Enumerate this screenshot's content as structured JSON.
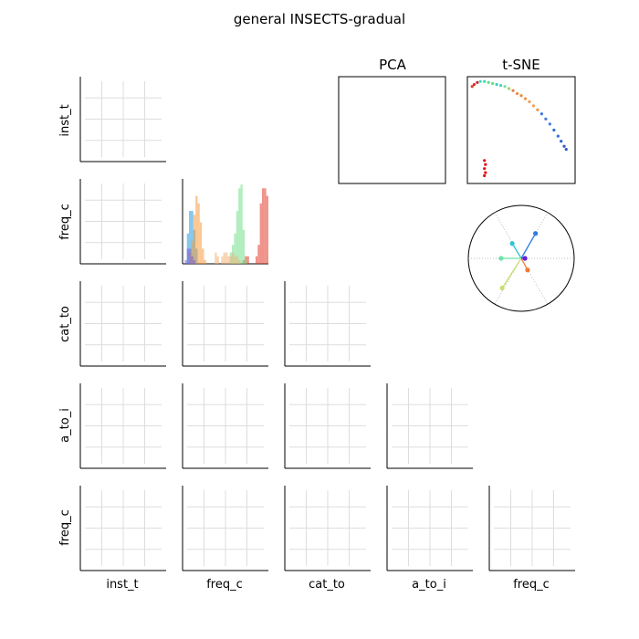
{
  "title": "general INSECTS-gradual",
  "variables": [
    "inst_t",
    "freq_c",
    "cat_to",
    "a_to_i",
    "freq_c"
  ],
  "row_labels": [
    "inst_t",
    "freq_c",
    "cat_to",
    "a_to_i",
    "freq_c"
  ],
  "col_labels": [
    "inst_t",
    "freq_c",
    "cat_to",
    "a_to_i",
    "freq_c"
  ],
  "pca_title": "PCA",
  "tsne_title": "t-SNE",
  "colors": {
    "grid": "#dddddd",
    "axis": "#000000",
    "dotted": "#aaaaaa"
  },
  "chart_data": [
    {
      "type": "heatmap",
      "name": "pairwise grid",
      "note_grid": true,
      "rows": [
        "inst_t",
        "freq_c",
        "cat_to",
        "a_to_i",
        "freq_c"
      ],
      "cols": [
        "inst_t",
        "freq_c",
        "cat_to",
        "a_to_i",
        "freq_c"
      ]
    },
    {
      "type": "bar",
      "name": "freq_c histogram",
      "bins": 40,
      "series": [
        {
          "color": "#1f9be0",
          "values": [
            0,
            0,
            8,
            14,
            14,
            9,
            4,
            0,
            0,
            0,
            0,
            0,
            0,
            0,
            0,
            0,
            0,
            0,
            0,
            0,
            0,
            0,
            0,
            0,
            0,
            0,
            0,
            0,
            0,
            0,
            0,
            0,
            0,
            0,
            0,
            0,
            0,
            0,
            0,
            0
          ]
        },
        {
          "color": "#f59a3d",
          "values": [
            0,
            0,
            0,
            3,
            6,
            13,
            18,
            16,
            11,
            4,
            1,
            0,
            0,
            0,
            0,
            0,
            0,
            0,
            0,
            0,
            0,
            0,
            0,
            0,
            0,
            0,
            0,
            0,
            0,
            0,
            0,
            0,
            0,
            0,
            0,
            0,
            0,
            0,
            0,
            0
          ]
        },
        {
          "color": "#7a5ad0",
          "values": [
            0,
            1,
            4,
            4,
            2,
            1,
            0,
            0,
            0,
            0,
            0,
            0,
            0,
            0,
            0,
            0,
            0,
            0,
            0,
            0,
            0,
            0,
            0,
            0,
            0,
            0,
            0,
            0,
            0,
            0,
            0,
            0,
            0,
            0,
            0,
            0,
            0,
            0,
            0,
            0
          ]
        },
        {
          "color": "#e33b2a",
          "values": [
            0,
            0,
            0,
            0,
            0,
            0,
            0,
            0,
            0,
            0,
            0,
            0,
            0,
            0,
            0,
            0,
            0,
            0,
            0,
            0,
            0,
            0,
            0,
            0,
            0,
            0,
            0,
            0,
            1,
            2,
            2,
            0,
            0,
            0,
            2,
            5,
            16,
            20,
            20,
            18
          ]
        },
        {
          "color": "#6fe08a",
          "values": [
            0,
            0,
            0,
            0,
            0,
            0,
            0,
            0,
            0,
            0,
            0,
            0,
            0,
            0,
            0,
            0,
            0,
            0,
            0,
            0,
            0,
            0,
            3,
            5,
            8,
            14,
            20,
            21,
            9,
            1,
            0,
            0,
            0,
            0,
            0,
            0,
            0,
            0,
            0,
            0
          ]
        },
        {
          "color": "#f3b27a",
          "values": [
            0,
            0,
            0,
            0,
            0,
            0,
            0,
            0,
            0,
            0,
            0,
            0,
            0,
            0,
            0,
            3,
            2,
            0,
            2,
            3,
            3,
            2,
            2,
            3,
            2,
            2,
            1,
            0,
            0,
            0,
            0,
            0,
            0,
            0,
            0,
            0,
            0,
            0,
            0,
            0
          ]
        }
      ]
    },
    {
      "type": "scatter",
      "name": "PCA",
      "points": []
    },
    {
      "type": "scatter",
      "name": "t-SNE",
      "xlim": [
        0,
        1
      ],
      "ylim": [
        0,
        1
      ],
      "points": [
        {
          "x": 0.02,
          "y": 0.93,
          "c": "#e0402a"
        },
        {
          "x": 0.04,
          "y": 0.95,
          "c": "#d43020"
        },
        {
          "x": 0.07,
          "y": 0.97,
          "c": "#c92a40"
        },
        {
          "x": 0.1,
          "y": 0.98,
          "c": "#4ad9c0"
        },
        {
          "x": 0.14,
          "y": 0.98,
          "c": "#3fe0b0"
        },
        {
          "x": 0.18,
          "y": 0.97,
          "c": "#58e08a"
        },
        {
          "x": 0.22,
          "y": 0.96,
          "c": "#67e07a"
        },
        {
          "x": 0.26,
          "y": 0.95,
          "c": "#3fc9c4"
        },
        {
          "x": 0.3,
          "y": 0.94,
          "c": "#48d6b8"
        },
        {
          "x": 0.34,
          "y": 0.93,
          "c": "#7fe0a0"
        },
        {
          "x": 0.38,
          "y": 0.91,
          "c": "#a8d060"
        },
        {
          "x": 0.42,
          "y": 0.89,
          "c": "#e08050"
        },
        {
          "x": 0.46,
          "y": 0.86,
          "c": "#f08a40"
        },
        {
          "x": 0.5,
          "y": 0.84,
          "c": "#ef8a3a"
        },
        {
          "x": 0.54,
          "y": 0.81,
          "c": "#f09548"
        },
        {
          "x": 0.58,
          "y": 0.78,
          "c": "#f39a4a"
        },
        {
          "x": 0.62,
          "y": 0.74,
          "c": "#f5a050"
        },
        {
          "x": 0.66,
          "y": 0.7,
          "c": "#e8904a"
        },
        {
          "x": 0.7,
          "y": 0.66,
          "c": "#3c7ae0"
        },
        {
          "x": 0.74,
          "y": 0.61,
          "c": "#3a78de"
        },
        {
          "x": 0.78,
          "y": 0.56,
          "c": "#4080e0"
        },
        {
          "x": 0.82,
          "y": 0.5,
          "c": "#2f6ed4"
        },
        {
          "x": 0.86,
          "y": 0.44,
          "c": "#3370d8"
        },
        {
          "x": 0.89,
          "y": 0.39,
          "c": "#2c64cc"
        },
        {
          "x": 0.92,
          "y": 0.34,
          "c": "#2a5cc8"
        },
        {
          "x": 0.94,
          "y": 0.31,
          "c": "#2a5cc8"
        },
        {
          "x": 0.14,
          "y": 0.2,
          "c": "#e81010"
        },
        {
          "x": 0.15,
          "y": 0.16,
          "c": "#e81010"
        },
        {
          "x": 0.14,
          "y": 0.12,
          "c": "#e81010"
        },
        {
          "x": 0.15,
          "y": 0.08,
          "c": "#e81010"
        },
        {
          "x": 0.14,
          "y": 0.05,
          "c": "#e81010"
        }
      ]
    },
    {
      "type": "scatter",
      "name": "polar loadings",
      "points": [
        {
          "x": 0.27,
          "y": 0.47,
          "c": "#2f7de0"
        },
        {
          "x": 0.12,
          "y": -0.22,
          "c": "#f07a3c"
        },
        {
          "x": -0.17,
          "y": 0.28,
          "c": "#2fc4d6"
        },
        {
          "x": -0.38,
          "y": 0.0,
          "c": "#6fe0a8"
        },
        {
          "x": -0.36,
          "y": -0.56,
          "c": "#c6e070"
        },
        {
          "x": 0.07,
          "y": 0.0,
          "c": "#6a1ee0"
        }
      ]
    }
  ]
}
